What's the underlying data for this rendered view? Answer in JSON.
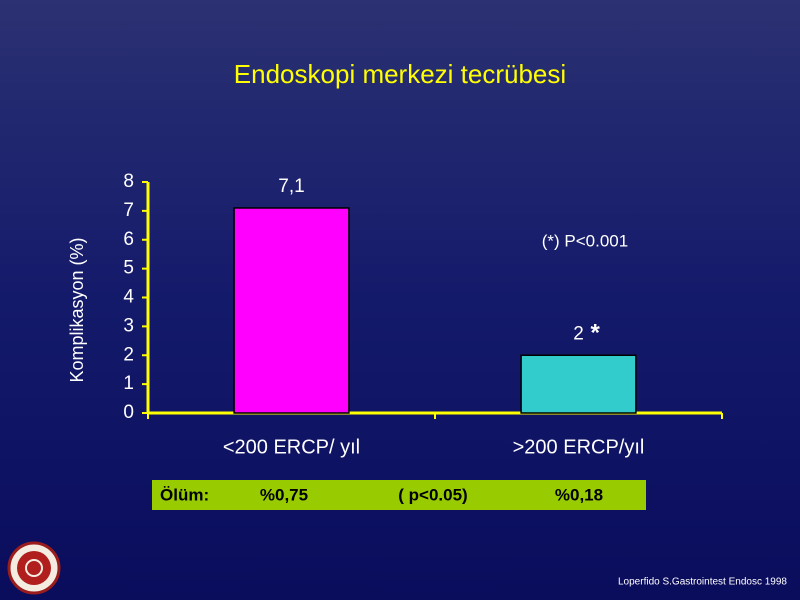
{
  "chart_data": {
    "type": "bar",
    "title": "Endoskopi merkezi  tecrübesi",
    "y_label": "Komplikasyon (%)",
    "categories": [
      "<200 ERCP/ yıl",
      ">200 ERCP/yıl"
    ],
    "values": [
      7.1,
      2
    ],
    "value_labels": [
      "7,1",
      "2"
    ],
    "colors": [
      "#ff00ff",
      "#33cccc"
    ],
    "ylim": [
      0,
      8
    ],
    "yticks": [
      0,
      1,
      2,
      3,
      4,
      5,
      6,
      7,
      8
    ],
    "significance_mark": "*",
    "annotation": "(*) P<0.001"
  },
  "mortality": {
    "label": "Ölüm:",
    "cells": [
      "%0,75",
      "( p<0.05)",
      "%0,18"
    ]
  },
  "source": "Loperfido S.Gastrointest Endosc 1998"
}
